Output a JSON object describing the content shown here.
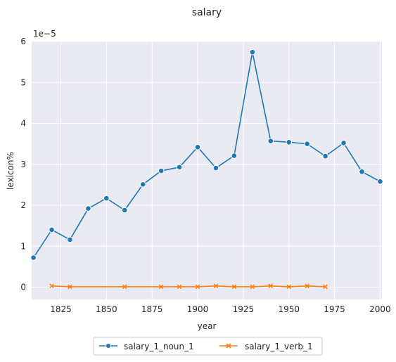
{
  "chart_data": {
    "type": "line",
    "title": "salary",
    "xlabel": "year",
    "ylabel": "lexicon%",
    "y_offset_label": "1e−5",
    "xlim": [
      1809,
      2001
    ],
    "ylim": [
      -0.3,
      6.0
    ],
    "x_ticks": [
      1825,
      1850,
      1875,
      1900,
      1925,
      1950,
      1975,
      2000
    ],
    "y_ticks": [
      0,
      1,
      2,
      3,
      4,
      5,
      6
    ],
    "grid": true,
    "legend_position": "bottom-center",
    "series": [
      {
        "name": "salary_1_noun_1",
        "color": "#1f77b4",
        "marker": "circle",
        "points": [
          [
            1810,
            0.72
          ],
          [
            1820,
            1.4
          ],
          [
            1830,
            1.16
          ],
          [
            1840,
            1.92
          ],
          [
            1850,
            2.17
          ],
          [
            1860,
            1.88
          ],
          [
            1870,
            2.51
          ],
          [
            1880,
            2.84
          ],
          [
            1890,
            2.93
          ],
          [
            1900,
            3.42
          ],
          [
            1910,
            2.91
          ],
          [
            1920,
            3.21
          ],
          [
            1930,
            5.74
          ],
          [
            1940,
            3.57
          ],
          [
            1950,
            3.54
          ],
          [
            1960,
            3.5
          ],
          [
            1970,
            3.2
          ],
          [
            1980,
            3.52
          ],
          [
            1990,
            2.82
          ],
          [
            2000,
            2.58
          ]
        ]
      },
      {
        "name": "salary_1_verb_1",
        "color": "#ff7f0e",
        "marker": "x",
        "points": [
          [
            1820,
            0.03
          ],
          [
            1830,
            0.01
          ],
          [
            1860,
            0.01
          ],
          [
            1880,
            0.01
          ],
          [
            1890,
            0.01
          ],
          [
            1900,
            0.01
          ],
          [
            1910,
            0.03
          ],
          [
            1920,
            0.01
          ],
          [
            1930,
            0.01
          ],
          [
            1940,
            0.03
          ],
          [
            1950,
            0.01
          ],
          [
            1960,
            0.03
          ],
          [
            1970,
            0.01
          ]
        ]
      }
    ]
  }
}
